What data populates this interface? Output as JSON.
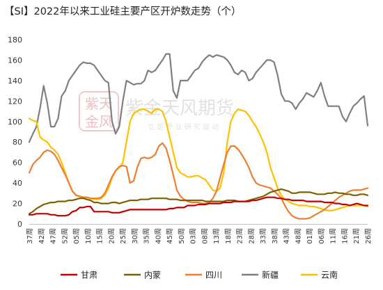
{
  "chart_data": {
    "type": "line",
    "title": "【SI】2022年以来工业硅主要产区开炉数走势（个）",
    "ylim": [
      0,
      180
    ],
    "yticks": [
      0,
      20,
      40,
      60,
      80,
      100,
      120,
      140,
      160,
      180
    ],
    "x_tick_labels": [
      "37周",
      "42周",
      "47周",
      "52周",
      "05周",
      "10周",
      "15周",
      "20周",
      "25周",
      "30周",
      "35周",
      "40周",
      "45周",
      "50周",
      "03周",
      "08周",
      "13周",
      "18周",
      "23周",
      "28周",
      "33周",
      "38周",
      "43周",
      "48周",
      "01周",
      "06周",
      "11周",
      "16周",
      "21周",
      "26周"
    ],
    "legend_position": "bottom",
    "series": [
      {
        "name": "甘肃",
        "color": "#c00000",
        "values": [
          9,
          9,
          10,
          10,
          10,
          10,
          9,
          9,
          8,
          8,
          8,
          9,
          12,
          13,
          16,
          16,
          17,
          17,
          12,
          12,
          12,
          12,
          12,
          11,
          11,
          11,
          12,
          13,
          14,
          14,
          14,
          14,
          14,
          14,
          14,
          14,
          14,
          14,
          14,
          15,
          15,
          16,
          16,
          16,
          18,
          18,
          18,
          19,
          19,
          19,
          20,
          20,
          20,
          20,
          21,
          21,
          21,
          22,
          22,
          22,
          22,
          22,
          23,
          23,
          24,
          25,
          26,
          26,
          26,
          25,
          25,
          24,
          24,
          23,
          23,
          23,
          23,
          22,
          22,
          22,
          22,
          22,
          21,
          21,
          21,
          20,
          20,
          19,
          19,
          18,
          19,
          20,
          19,
          18,
          18
        ]
      },
      {
        "name": "内蒙",
        "color": "#7f6000",
        "values": [
          10,
          12,
          15,
          17,
          19,
          20,
          21,
          21,
          22,
          22,
          22,
          23,
          23,
          24,
          25,
          25,
          24,
          23,
          21,
          21,
          20,
          20,
          20,
          21,
          21,
          20,
          21,
          22,
          23,
          23,
          23,
          24,
          24,
          24,
          25,
          25,
          25,
          25,
          25,
          24,
          24,
          24,
          23,
          23,
          23,
          23,
          23,
          23,
          23,
          22,
          22,
          22,
          22,
          22,
          22,
          23,
          23,
          23,
          22,
          22,
          22,
          23,
          24,
          25,
          26,
          27,
          29,
          31,
          32,
          33,
          34,
          33,
          32,
          30,
          30,
          31,
          31,
          31,
          31,
          30,
          29,
          29,
          29,
          30,
          30,
          31,
          30,
          30,
          29,
          29,
          28,
          28,
          29,
          29,
          28
        ]
      },
      {
        "name": "四川",
        "color": "#ed7d31",
        "values": [
          50,
          58,
          62,
          65,
          70,
          72,
          71,
          68,
          62,
          55,
          48,
          40,
          32,
          28,
          27,
          26,
          26,
          25,
          25,
          25,
          26,
          30,
          38,
          46,
          52,
          56,
          57,
          56,
          40,
          42,
          55,
          64,
          65,
          64,
          65,
          68,
          76,
          79,
          74,
          62,
          48,
          33,
          27,
          24,
          22,
          21,
          21,
          21,
          20,
          20,
          21,
          25,
          32,
          45,
          58,
          70,
          76,
          76,
          73,
          68,
          62,
          55,
          46,
          40,
          38,
          37,
          36,
          35,
          32,
          29,
          25,
          18,
          12,
          8,
          6,
          5,
          5,
          5,
          6,
          8,
          10,
          12,
          14,
          17,
          20,
          23,
          26,
          28,
          30,
          32,
          33,
          33,
          33,
          34,
          35
        ]
      },
      {
        "name": "新疆",
        "color": "#7f7f7f",
        "values": [
          80,
          88,
          95,
          113,
          135,
          118,
          95,
          95,
          103,
          125,
          130,
          140,
          145,
          150,
          155,
          158,
          157,
          157,
          155,
          150,
          145,
          140,
          138,
          100,
          88,
          95,
          120,
          140,
          138,
          136,
          137,
          137,
          140,
          150,
          148,
          150,
          155,
          160,
          166,
          166,
          130,
          123,
          140,
          140,
          140,
          145,
          150,
          152,
          158,
          162,
          165,
          163,
          165,
          164,
          163,
          160,
          155,
          148,
          146,
          150,
          148,
          140,
          142,
          148,
          152,
          156,
          160,
          160,
          158,
          145,
          127,
          120,
          120,
          118,
          112,
          118,
          122,
          128,
          126,
          124,
          130,
          138,
          125,
          115,
          115,
          115,
          115,
          105,
          100,
          108,
          115,
          118,
          122,
          125,
          96
        ]
      },
      {
        "name": "云南",
        "color": "#ffc000",
        "values": [
          103,
          101,
          100,
          85,
          82,
          80,
          75,
          72,
          68,
          60,
          50,
          40,
          32,
          28,
          27,
          26,
          26,
          25,
          24,
          24,
          25,
          28,
          35,
          45,
          52,
          55,
          60,
          80,
          100,
          108,
          110,
          112,
          112,
          110,
          108,
          112,
          112,
          110,
          100,
          85,
          70,
          55,
          50,
          48,
          46,
          46,
          47,
          47,
          45,
          43,
          38,
          33,
          32,
          35,
          50,
          80,
          100,
          108,
          112,
          111,
          110,
          106,
          100,
          95,
          88,
          80,
          70,
          55,
          45,
          35,
          28,
          24,
          22,
          20,
          19,
          18,
          18,
          18,
          17,
          17,
          16,
          15,
          14,
          13,
          13,
          14,
          15,
          16,
          17,
          18,
          18,
          18,
          18,
          18,
          17
        ]
      }
    ]
  },
  "watermark": {
    "company": "紫金天风期货",
    "tagline": "立 足 产 业   研 究 驱 动",
    "logo_chars": "紫天金风"
  }
}
